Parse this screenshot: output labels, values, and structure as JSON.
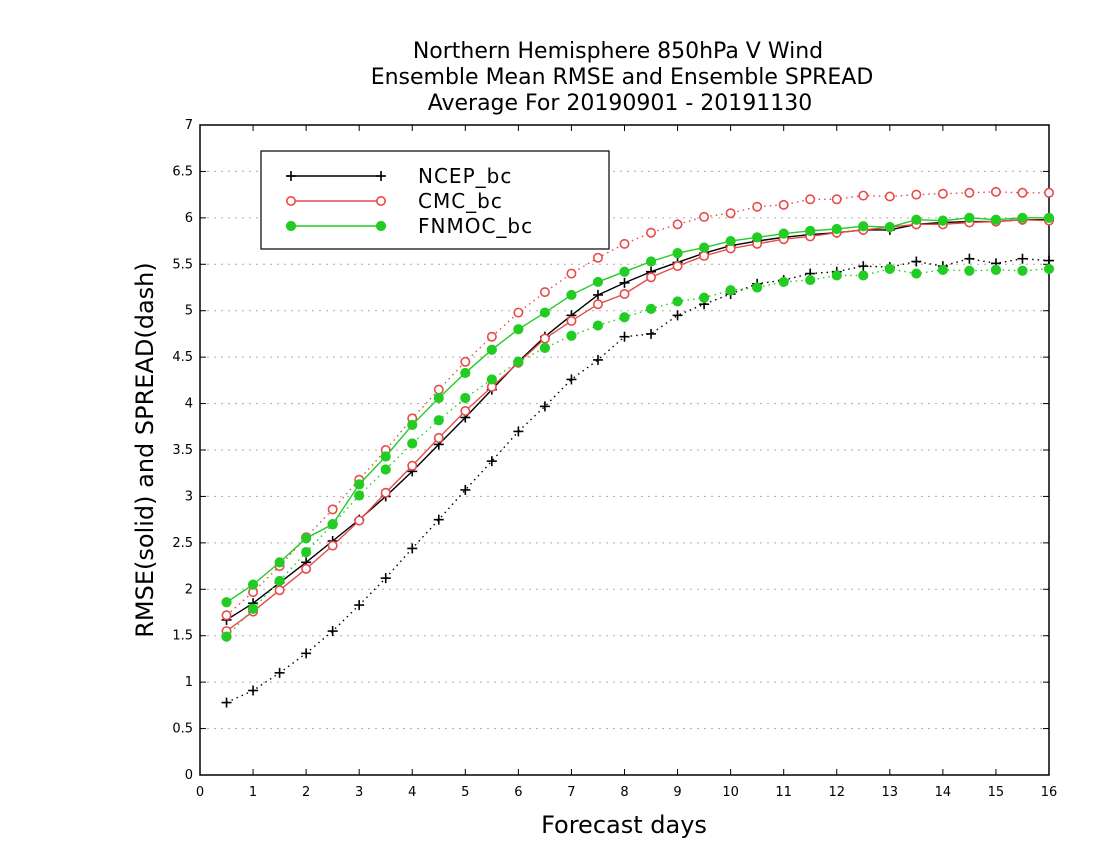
{
  "chart_data": {
    "type": "line",
    "title": [
      "Northern Hemisphere 850hPa V Wind",
      "Ensemble Mean RMSE and Ensemble SPREAD",
      "Average For 20190901 - 20191130"
    ],
    "xlabel": "Forecast days",
    "ylabel": "RMSE(solid) and SPREAD(dash)",
    "xlim": [
      0,
      16
    ],
    "ylim": [
      0,
      7
    ],
    "xticks": [
      "0",
      "1",
      "2",
      "3",
      "4",
      "5",
      "6",
      "7",
      "8",
      "9",
      "10",
      "11",
      "12",
      "13",
      "14",
      "15",
      "16"
    ],
    "yticks": [
      "0",
      "0.5",
      "1",
      "1.5",
      "2",
      "2.5",
      "3",
      "3.5",
      "4",
      "4.5",
      "5",
      "5.5",
      "6",
      "6.5",
      "7"
    ],
    "grid": true,
    "legend_position": "top-left",
    "x": [
      0.5,
      1,
      1.5,
      2,
      2.5,
      3,
      3.5,
      4,
      4.5,
      5,
      5.5,
      6,
      6.5,
      7,
      7.5,
      8,
      8.5,
      9,
      9.5,
      10,
      10.5,
      11,
      11.5,
      12,
      12.5,
      13,
      13.5,
      14,
      14.5,
      15,
      15.5,
      16
    ],
    "series": [
      {
        "name": "NCEP_bc",
        "color": "#000000",
        "marker": "plus",
        "rmse": [
          1.67,
          1.85,
          2.07,
          2.29,
          2.52,
          2.75,
          3.0,
          3.27,
          3.56,
          3.85,
          4.15,
          4.45,
          4.72,
          4.95,
          5.17,
          5.3,
          5.42,
          5.52,
          5.62,
          5.7,
          5.75,
          5.79,
          5.82,
          5.84,
          5.87,
          5.87,
          5.93,
          5.95,
          5.96,
          5.96,
          5.98,
          5.98
        ],
        "spread": [
          0.78,
          0.91,
          1.1,
          1.31,
          1.55,
          1.83,
          2.12,
          2.44,
          2.75,
          3.07,
          3.38,
          3.7,
          3.97,
          4.26,
          4.47,
          4.72,
          4.75,
          4.95,
          5.07,
          5.18,
          5.29,
          5.33,
          5.4,
          5.42,
          5.48,
          5.47,
          5.53,
          5.48,
          5.56,
          5.51,
          5.56,
          5.54
        ]
      },
      {
        "name": "CMC_bc",
        "color": "#e84a4a",
        "marker": "circle-open",
        "rmse": [
          1.55,
          1.76,
          1.99,
          2.22,
          2.47,
          2.74,
          3.04,
          3.33,
          3.63,
          3.92,
          4.18,
          4.44,
          4.7,
          4.89,
          5.07,
          5.18,
          5.36,
          5.48,
          5.59,
          5.67,
          5.72,
          5.77,
          5.8,
          5.84,
          5.87,
          5.9,
          5.93,
          5.93,
          5.95,
          5.96,
          5.98,
          5.97
        ],
        "spread": [
          1.72,
          1.97,
          2.25,
          2.56,
          2.86,
          3.18,
          3.5,
          3.84,
          4.15,
          4.45,
          4.72,
          4.98,
          5.2,
          5.4,
          5.57,
          5.72,
          5.84,
          5.93,
          6.01,
          6.05,
          6.12,
          6.14,
          6.2,
          6.2,
          6.24,
          6.23,
          6.25,
          6.26,
          6.27,
          6.28,
          6.27,
          6.27
        ]
      },
      {
        "name": "FNMOC_bc",
        "color": "#22cc22",
        "marker": "circle-filled",
        "rmse": [
          1.86,
          2.05,
          2.29,
          2.55,
          2.7,
          3.13,
          3.43,
          3.77,
          4.06,
          4.33,
          4.58,
          4.8,
          4.98,
          5.17,
          5.31,
          5.42,
          5.53,
          5.62,
          5.68,
          5.75,
          5.79,
          5.83,
          5.86,
          5.88,
          5.91,
          5.9,
          5.98,
          5.97,
          6.0,
          5.98,
          6.0,
          6.0
        ],
        "spread": [
          1.49,
          1.79,
          2.09,
          2.4,
          2.7,
          3.01,
          3.29,
          3.57,
          3.82,
          4.06,
          4.26,
          4.45,
          4.6,
          4.73,
          4.84,
          4.93,
          5.02,
          5.1,
          5.14,
          5.22,
          5.25,
          5.31,
          5.33,
          5.38,
          5.38,
          5.45,
          5.4,
          5.44,
          5.43,
          5.44,
          5.43,
          5.45
        ]
      }
    ]
  }
}
